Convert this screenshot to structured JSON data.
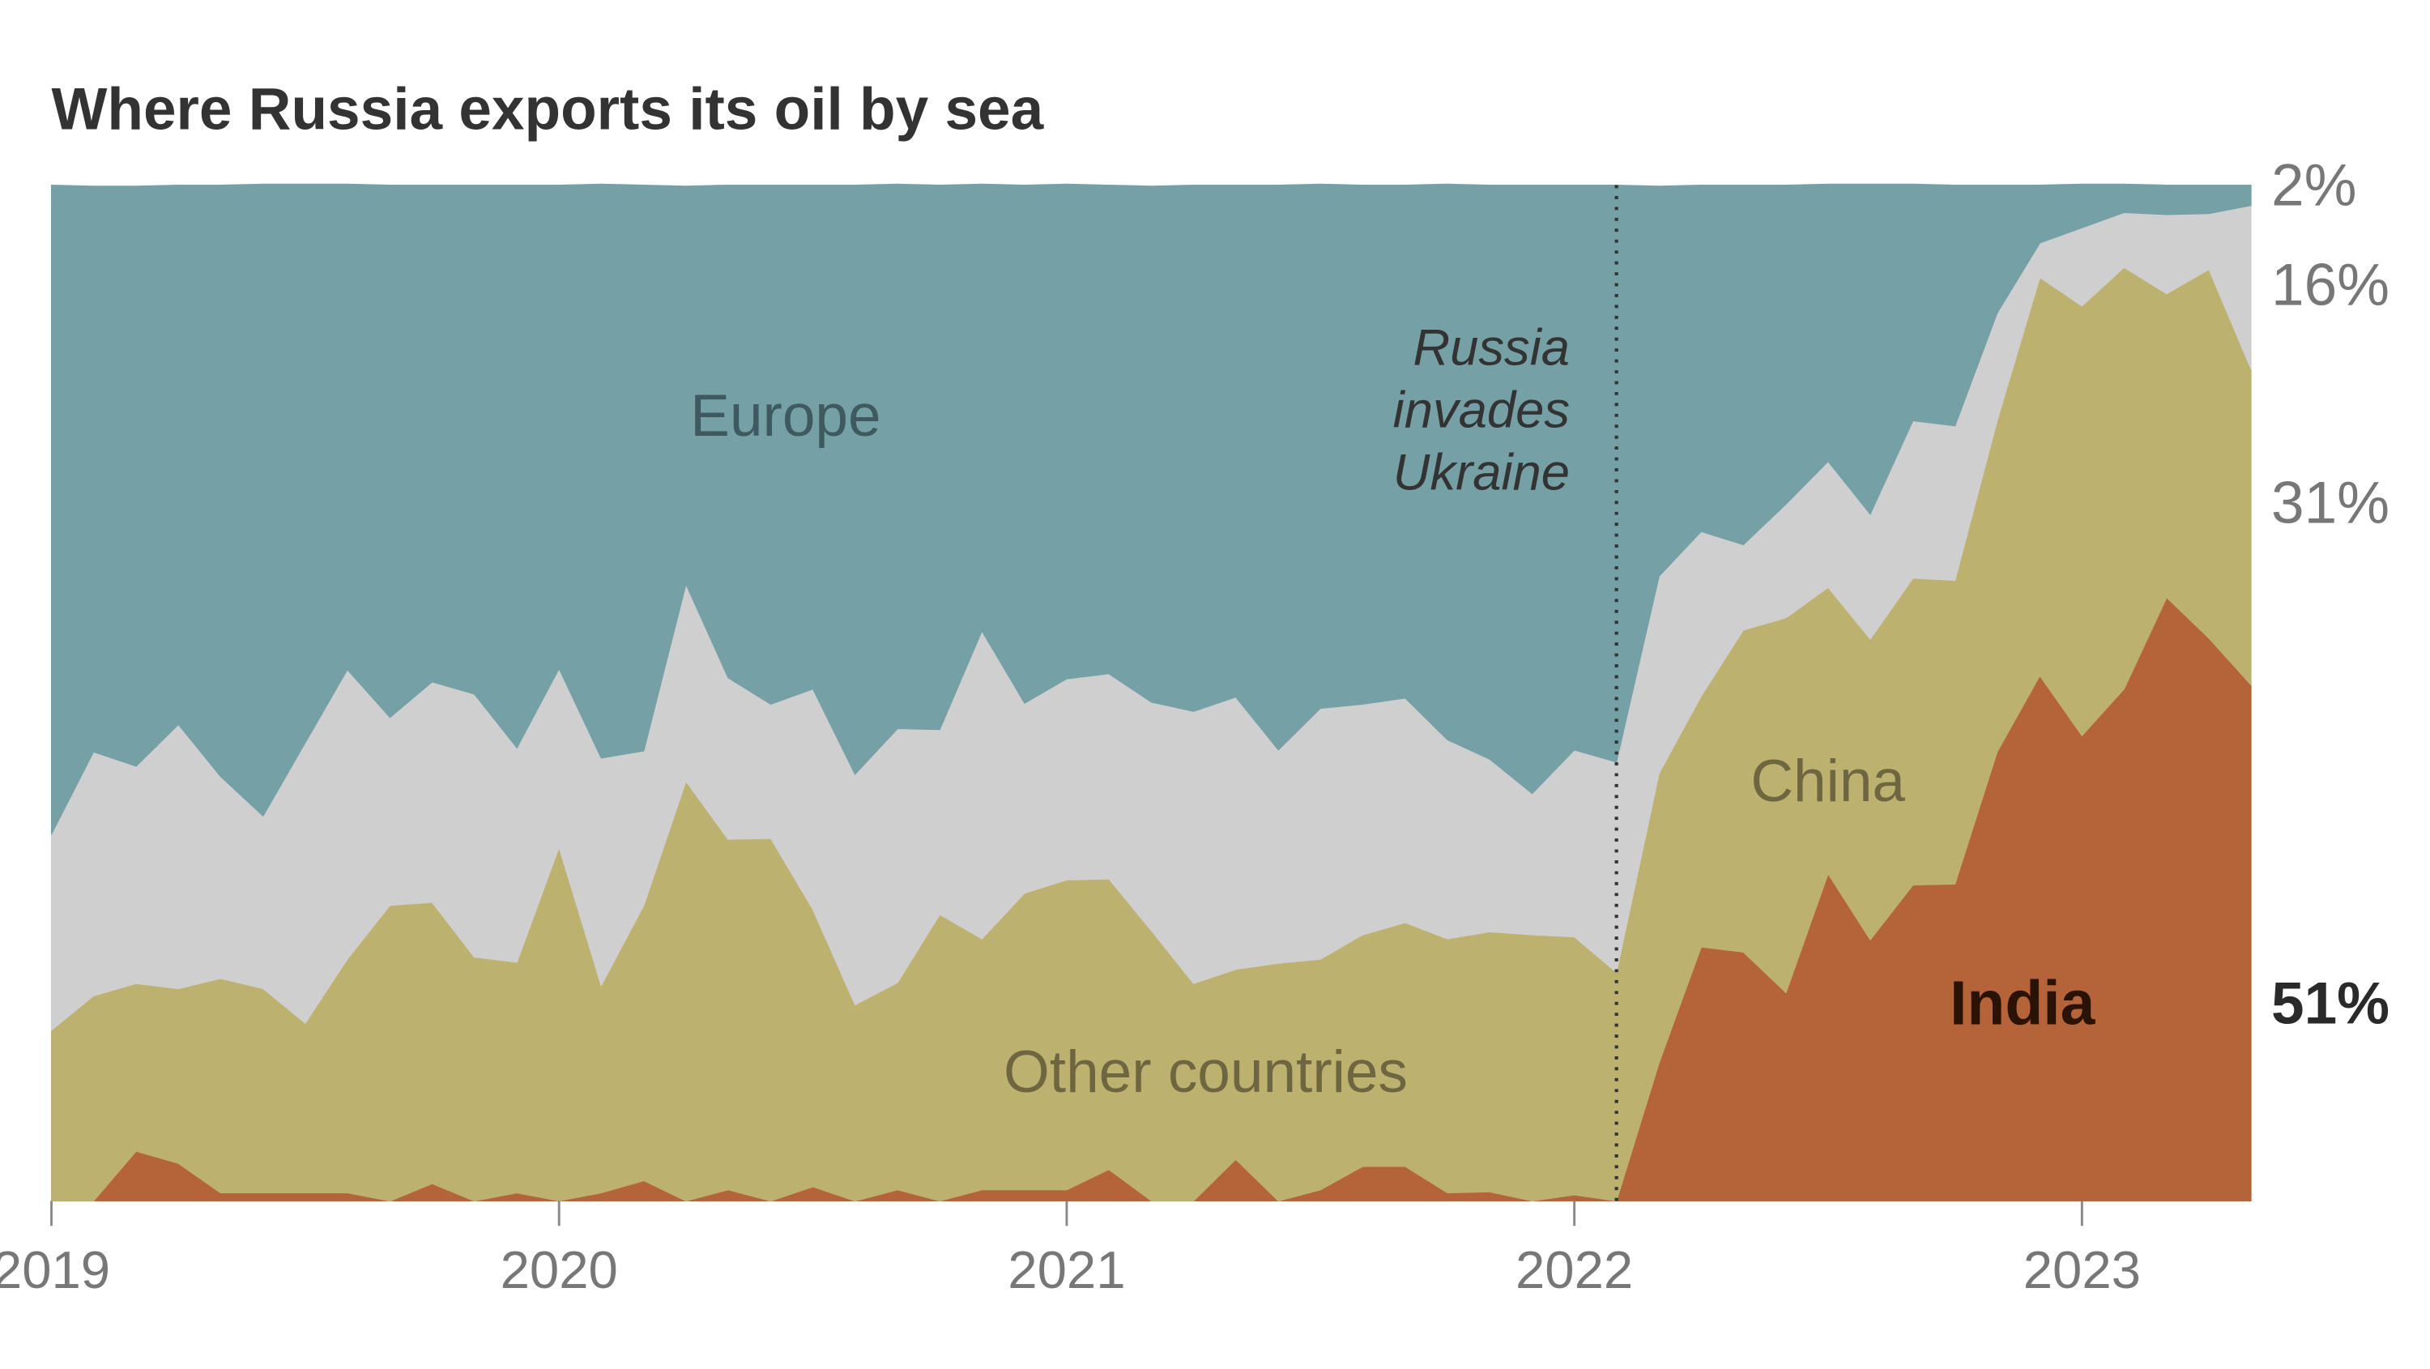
{
  "chart_data": {
    "type": "stacked_area",
    "title": "Where Russia exports its oil by sea",
    "x": [
      2019,
      2019.083,
      2019.167,
      2019.25,
      2019.333,
      2019.417,
      2019.5,
      2019.583,
      2019.667,
      2019.75,
      2019.833,
      2019.917,
      2020,
      2020.083,
      2020.167,
      2020.25,
      2020.333,
      2020.417,
      2020.5,
      2020.583,
      2020.667,
      2020.75,
      2020.833,
      2020.917,
      2021,
      2021.083,
      2021.167,
      2021.25,
      2021.333,
      2021.417,
      2021.5,
      2021.583,
      2021.667,
      2021.75,
      2021.833,
      2021.917,
      2022,
      2022.083,
      2022.167,
      2022.25,
      2022.333,
      2022.417,
      2022.5,
      2022.583,
      2022.667,
      2022.75,
      2022.833,
      2022.917,
      2023,
      2023.083,
      2023.167,
      2023.25,
      2023.333
    ],
    "xlim": [
      2019,
      2023.333
    ],
    "xticks": [
      2019,
      2020,
      2021,
      2022,
      2023
    ],
    "ylim": [
      0,
      100
    ],
    "grid": false,
    "series": [
      {
        "name": "India",
        "color": "#b56338",
        "end_label": "51%",
        "values": [
          0,
          0,
          4.9,
          3.7,
          0.8,
          0.8,
          0.8,
          0.8,
          0,
          1.7,
          0,
          0.8,
          0,
          0.8,
          2,
          0,
          1.1,
          0,
          1.4,
          0,
          1.1,
          0,
          1.1,
          1.1,
          1.1,
          3.1,
          0,
          0,
          4.1,
          0,
          1.1,
          3.4,
          3.4,
          0.8,
          0.9,
          0,
          0.6,
          0,
          13.6,
          25,
          24.5,
          20.5,
          32.2,
          25.7,
          31.1,
          31.2,
          44.2,
          51.7,
          45.8,
          50.4,
          59.4,
          55.4,
          50.8
        ]
      },
      {
        "name": "China",
        "color": "#bdb170",
        "end_label": "31%",
        "values": [
          16.8,
          20.2,
          16.5,
          17.2,
          21.1,
          20.1,
          16.7,
          23,
          29.1,
          27.7,
          24,
          22.7,
          34.8,
          20.4,
          27.1,
          41.3,
          34.5,
          35.7,
          27.3,
          19.3,
          20.4,
          28.2,
          24.7,
          29.2,
          30.5,
          28.6,
          26.6,
          21.4,
          18.7,
          23.4,
          22.7,
          22.8,
          24,
          25,
          25.6,
          26.2,
          25.4,
          22.5,
          28.5,
          24.7,
          31.7,
          36.9,
          28.2,
          29.6,
          30.2,
          29.9,
          32.6,
          39.2,
          42.3,
          41.5,
          29.9,
          36.3,
          31.1
        ]
      },
      {
        "name": "Other countries",
        "color": "#cfcfcf",
        "end_label": "16%",
        "values": [
          19.3,
          24,
          21.4,
          26,
          19.9,
          17,
          27.6,
          28.5,
          18.5,
          21.7,
          25.9,
          21.1,
          17.6,
          22.4,
          15.2,
          19.4,
          15.9,
          13.2,
          21.7,
          22.7,
          25,
          18.2,
          30.3,
          18.7,
          19.8,
          20.2,
          22.5,
          26.8,
          26.8,
          21,
          24.7,
          22.7,
          22.1,
          19.6,
          17,
          13.9,
          18.4,
          20.7,
          19.4,
          16.2,
          8.4,
          11.2,
          12.4,
          12.3,
          15.5,
          15.2,
          10.6,
          3.4,
          7.7,
          5.4,
          7.8,
          5.5,
          16.1
        ]
      },
      {
        "name": "Europe",
        "color": "#74a0a6",
        "end_label": "2%",
        "values": [
          63.9,
          55.7,
          57.1,
          53.1,
          58.2,
          62.2,
          55,
          47.8,
          52.4,
          48.9,
          50.1,
          55.4,
          47.6,
          56.5,
          55.7,
          39.2,
          48.5,
          51.1,
          49.6,
          58,
          53.6,
          53.6,
          44,
          51,
          48.7,
          48.1,
          50.8,
          51.8,
          50.4,
          55.6,
          51.6,
          51.1,
          50.5,
          54.7,
          56.5,
          59.9,
          55.6,
          56.8,
          38.4,
          34.1,
          35.4,
          31.4,
          27.3,
          32.5,
          23.3,
          23.7,
          12.6,
          5.7,
          4.3,
          2.8,
          2.9,
          2.8,
          2
        ]
      }
    ],
    "annotation": {
      "text": [
        "Russia",
        "invades",
        "Ukraine"
      ],
      "x": 2022.083
    }
  }
}
